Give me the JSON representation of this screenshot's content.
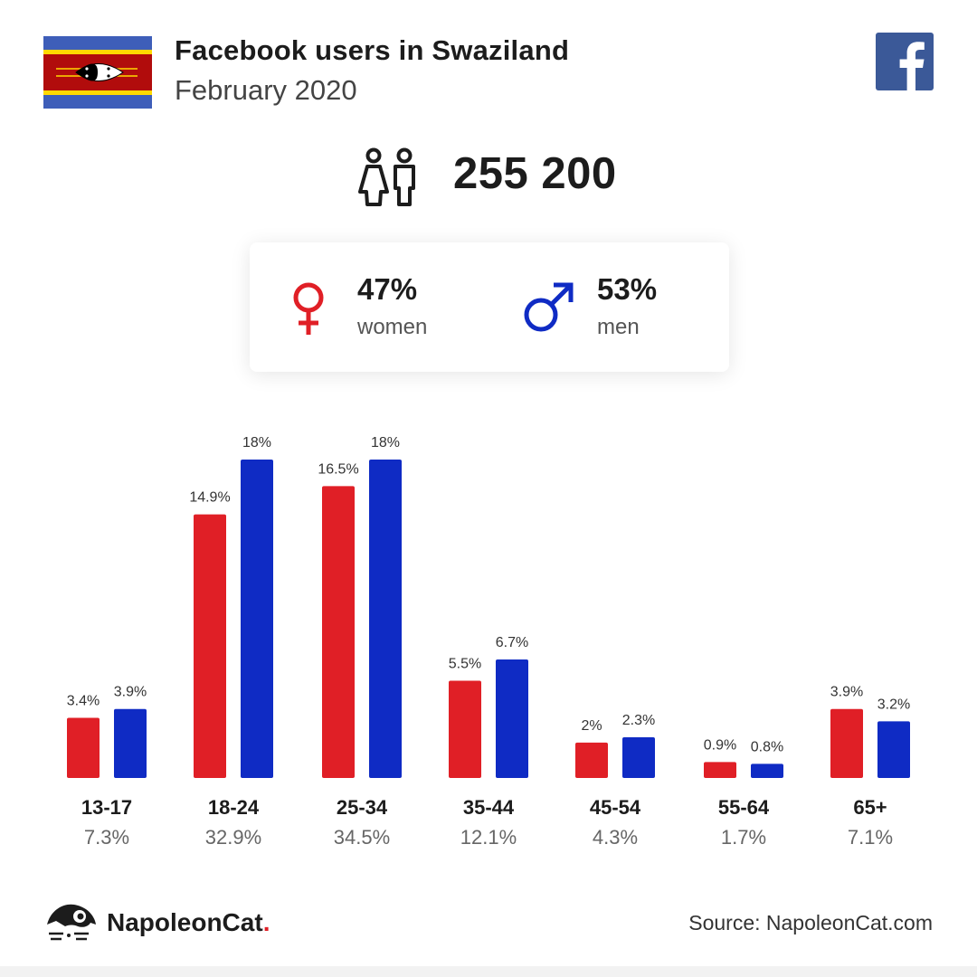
{
  "header": {
    "title": "Facebook users in Swaziland",
    "subtitle": "February 2020"
  },
  "total_users": "255 200",
  "gender": {
    "women_pct": "47%",
    "women_label": "women",
    "men_pct": "53%",
    "men_label": "men"
  },
  "colors": {
    "women": "#e01f26",
    "men": "#0f2bc4",
    "facebook": "#3b5998"
  },
  "icons": [
    "swaziland-flag",
    "facebook-icon",
    "users-icon",
    "female-icon",
    "male-icon",
    "napoleoncat-logo"
  ],
  "chart_data": {
    "type": "bar",
    "categories": [
      "13-17",
      "18-24",
      "25-34",
      "35-44",
      "45-54",
      "55-64",
      "65+"
    ],
    "category_totals": [
      "7.3%",
      "32.9%",
      "34.5%",
      "12.1%",
      "4.3%",
      "1.7%",
      "7.1%"
    ],
    "series": [
      {
        "name": "women",
        "values": [
          3.4,
          14.9,
          16.5,
          5.5,
          2,
          0.9,
          3.9
        ],
        "labels": [
          "3.4%",
          "14.9%",
          "16.5%",
          "5.5%",
          "2%",
          "0.9%",
          "3.9%"
        ]
      },
      {
        "name": "men",
        "values": [
          3.9,
          18,
          18,
          6.7,
          2.3,
          0.8,
          3.2
        ],
        "labels": [
          "3.9%",
          "18%",
          "18%",
          "6.7%",
          "2.3%",
          "0.8%",
          "3.2%"
        ]
      }
    ],
    "ylim": [
      0,
      18
    ],
    "grid": false
  },
  "footer": {
    "brand": "NapoleonCat",
    "brand_dot": ".",
    "source": "Source: NapoleonCat.com"
  }
}
